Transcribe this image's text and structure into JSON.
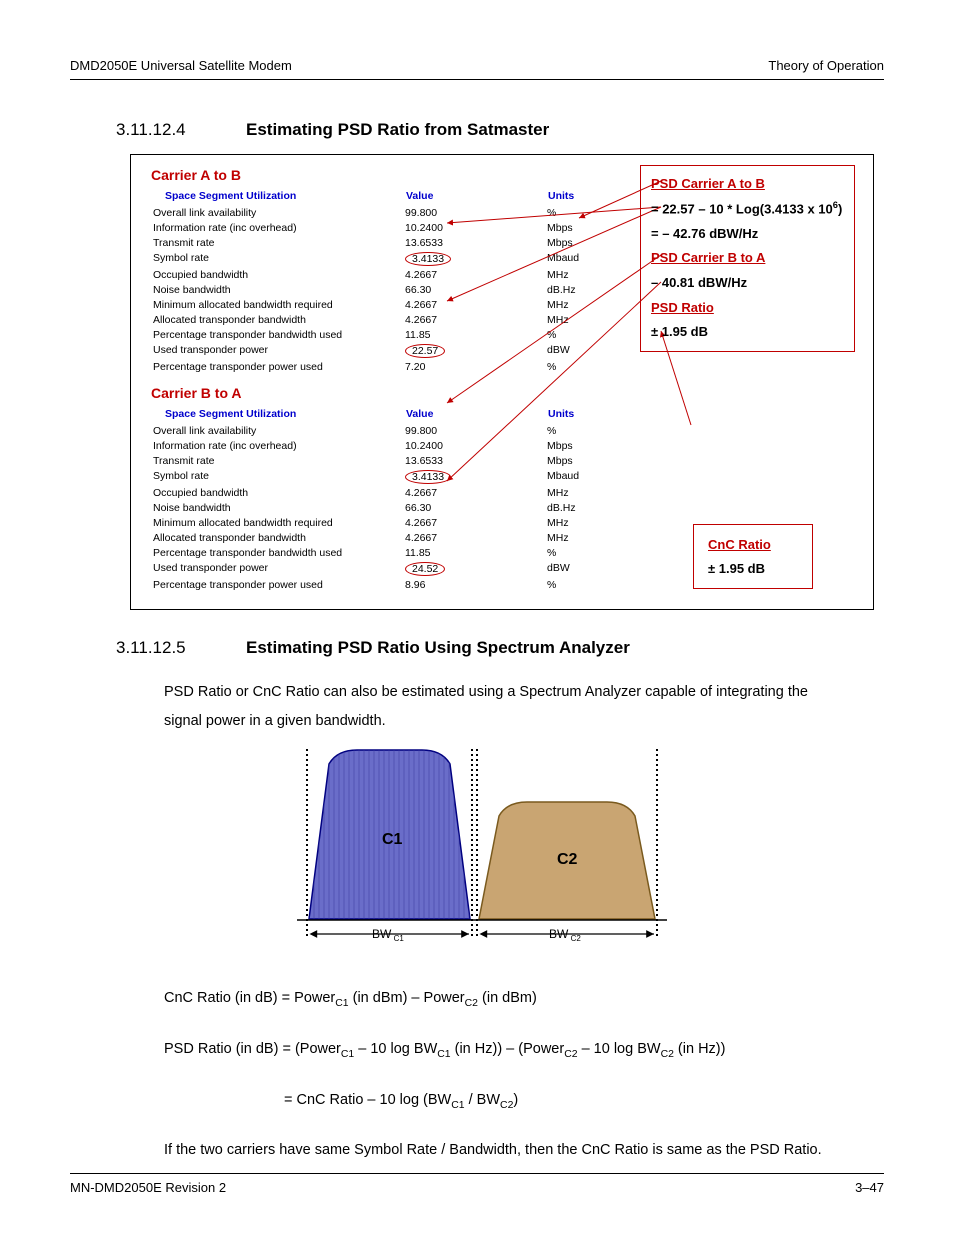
{
  "header": {
    "left": "DMD2050E Universal Satellite Modem",
    "right": "Theory of Operation"
  },
  "sec1": {
    "num": "3.11.12.4",
    "title": "Estimating PSD Ratio from Satmaster"
  },
  "carrierA": {
    "title": "Carrier A to B",
    "th_label": "Space Segment Utilization",
    "th_val": "Value",
    "th_unit": "Units",
    "rows": [
      {
        "l": "Overall link availability",
        "v": "99.800",
        "u": "%"
      },
      {
        "l": "Information rate (inc overhead)",
        "v": "10.2400",
        "u": "Mbps"
      },
      {
        "l": "Transmit rate",
        "v": "13.6533",
        "u": "Mbps"
      },
      {
        "l": "Symbol rate",
        "v": "3.4133",
        "u": "Mbaud"
      },
      {
        "l": "Occupied bandwidth",
        "v": "4.2667",
        "u": "MHz"
      },
      {
        "l": "Noise bandwidth",
        "v": "66.30",
        "u": "dB.Hz"
      },
      {
        "l": "Minimum allocated bandwidth required",
        "v": "4.2667",
        "u": "MHz"
      },
      {
        "l": "Allocated transponder bandwidth",
        "v": "4.2667",
        "u": "MHz"
      },
      {
        "l": "Percentage transponder bandwidth used",
        "v": "11.85",
        "u": "%"
      },
      {
        "l": "Used transponder power",
        "v": "22.57",
        "u": "dBW"
      },
      {
        "l": "Percentage transponder power used",
        "v": "7.20",
        "u": "%"
      }
    ]
  },
  "carrierB": {
    "title": "Carrier B to A",
    "th_label": "Space Segment Utilization",
    "th_val": "Value",
    "th_unit": "Units",
    "rows": [
      {
        "l": "Overall link availability",
        "v": "99.800",
        "u": "%"
      },
      {
        "l": "Information rate (inc overhead)",
        "v": "10.2400",
        "u": "Mbps"
      },
      {
        "l": "Transmit rate",
        "v": "13.6533",
        "u": "Mbps"
      },
      {
        "l": "Symbol rate",
        "v": "3.4133",
        "u": "Mbaud"
      },
      {
        "l": "Occupied bandwidth",
        "v": "4.2667",
        "u": "MHz"
      },
      {
        "l": "Noise bandwidth",
        "v": "66.30",
        "u": "dB.Hz"
      },
      {
        "l": "Minimum allocated bandwidth required",
        "v": "4.2667",
        "u": "MHz"
      },
      {
        "l": "Allocated transponder bandwidth",
        "v": "4.2667",
        "u": "MHz"
      },
      {
        "l": "Percentage transponder bandwidth used",
        "v": "11.85",
        "u": "%"
      },
      {
        "l": "Used transponder power",
        "v": "24.52",
        "u": "dBW"
      },
      {
        "l": "Percentage transponder power used",
        "v": "8.96",
        "u": "%"
      }
    ]
  },
  "side": {
    "psdAB_h": "PSD Carrier A to B",
    "psdAB_eq": "= 22.57 – 10 * Log(3.4133 x 10^6)",
    "psdAB_v": "= – 42.76 dBW/Hz",
    "psdBA_h": "PSD Carrier B to A",
    "psdBA_v": "– 40.81 dBW/Hz",
    "psdR_h": "PSD Ratio",
    "psdR_v": "± 1.95 dB",
    "cnc_h": "CnC Ratio",
    "cnc_v": "± 1.95 dB"
  },
  "sec2": {
    "num": "3.11.12.5",
    "title": "Estimating PSD Ratio Using Spectrum Analyzer"
  },
  "para1": "PSD Ratio or CnC Ratio can also be estimated using a Spectrum Analyzer capable of integrating the signal power in a given bandwidth.",
  "spectrum": {
    "colors": {
      "c1_fill": "#6a6dc9",
      "c1_stroke": "#000080",
      "c2_fill": "#c9a572",
      "c2_stroke": "#7a5a1e",
      "hatch": "#3c3ca0"
    },
    "labels": {
      "c1": "C1",
      "c2": "C2",
      "bw1": "BW",
      "bw1s": "C1",
      "bw2": "BW",
      "bw2s": "C2"
    }
  },
  "eq1_pre": "CnC Ratio (in dB) = Power",
  "eq1_s1": "C1",
  "eq1_mid": " (in dBm) – Power",
  "eq1_s2": "C2",
  "eq1_end": " (in dBm)",
  "eq2_pre": "PSD Ratio (in dB) = (Power",
  "eq2_s1": "C1",
  "eq2_a": " – 10 log BW",
  "eq2_s2": "C1",
  "eq2_b": " (in Hz)) – (Power",
  "eq2_s3": "C2",
  "eq2_c": " – 10 log BW",
  "eq2_s4": "C2",
  "eq2_d": " (in Hz))",
  "eq3_pre": "= CnC Ratio – 10 log (BW",
  "eq3_s1": "C1",
  "eq3_mid": " / BW",
  "eq3_s2": "C2",
  "eq3_end": ")",
  "para2": "If the two carriers have same Symbol Rate / Bandwidth, then the CnC Ratio is same as the PSD Ratio.",
  "footer": {
    "left": "MN-DMD2050E    Revision 2",
    "right": "3–47"
  },
  "circled_idx": {
    "A": [
      3,
      9
    ],
    "B": [
      3,
      9
    ]
  }
}
